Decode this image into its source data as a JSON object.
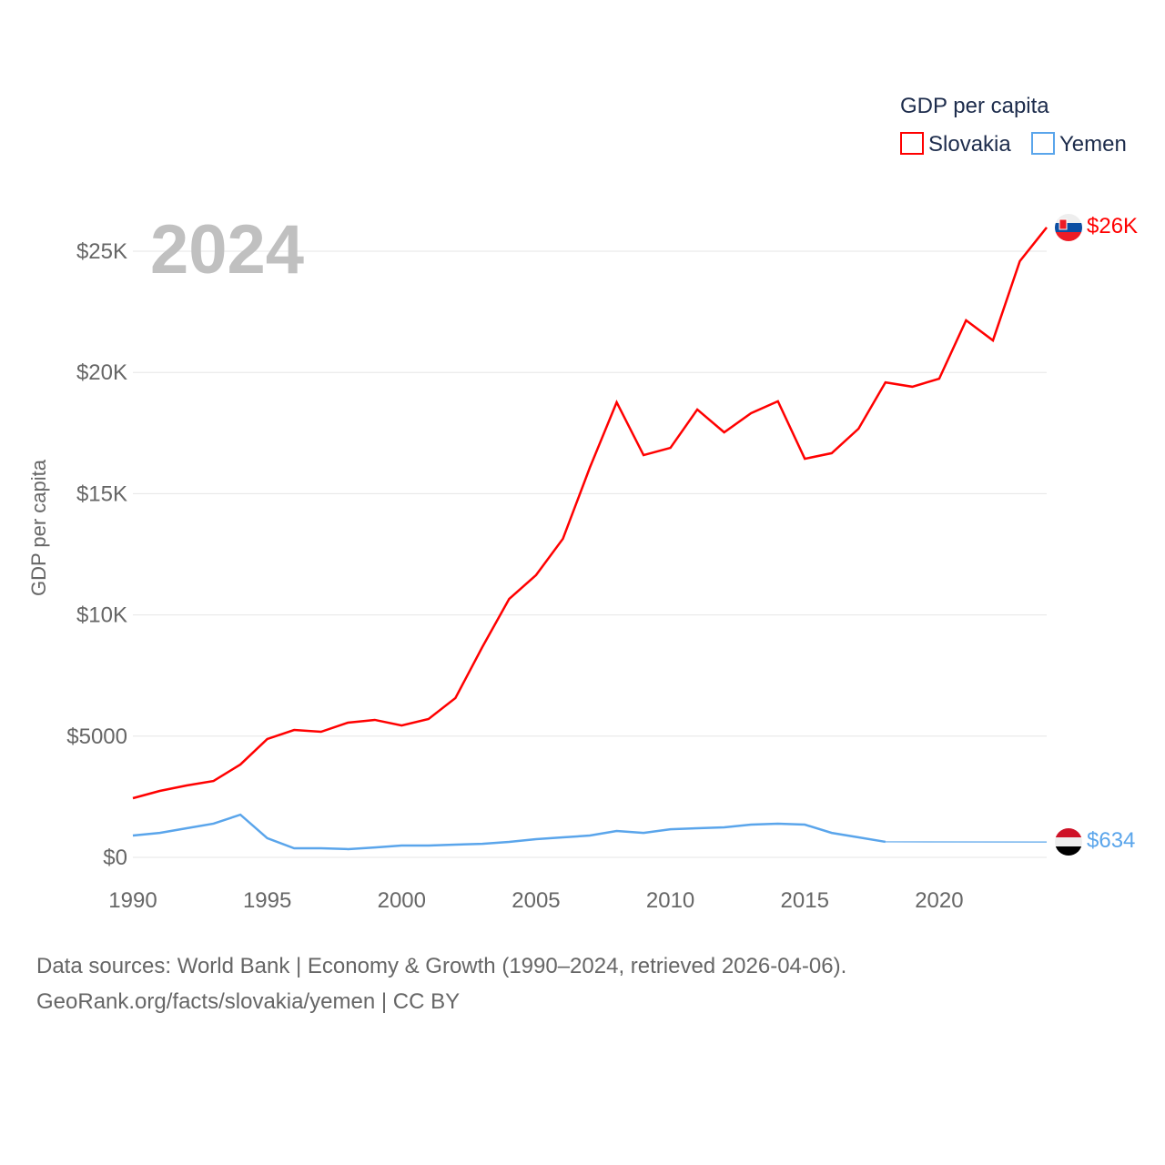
{
  "chart_data": {
    "type": "line",
    "year_watermark": "2024",
    "ylabel": "GDP per capita",
    "legend": {
      "title": "GDP per capita",
      "position": "top-right",
      "entries": [
        "Slovakia",
        "Yemen"
      ]
    },
    "xlim": [
      1990,
      2024
    ],
    "ylim": [
      0,
      27000
    ],
    "x_ticks": [
      "1990",
      "1995",
      "2000",
      "2005",
      "2010",
      "2015",
      "2020"
    ],
    "x_tick_values": [
      1990,
      1995,
      2000,
      2005,
      2010,
      2015,
      2020
    ],
    "y_ticks": [
      "$0",
      "$5000",
      "$10K",
      "$15K",
      "$20K",
      "$25K"
    ],
    "y_tick_values": [
      0,
      5000,
      10000,
      15000,
      20000,
      25000
    ],
    "x": [
      1990,
      1991,
      1992,
      1993,
      1994,
      1995,
      1996,
      1997,
      1998,
      1999,
      2000,
      2001,
      2002,
      2003,
      2004,
      2005,
      2006,
      2007,
      2008,
      2009,
      2010,
      2011,
      2012,
      2013,
      2014,
      2015,
      2016,
      2017,
      2018,
      2019,
      2020,
      2021,
      2022,
      2023,
      2024
    ],
    "series": [
      {
        "name": "Slovakia",
        "color": "#ff0000",
        "end_label": "$26K",
        "values": [
          2440,
          2740,
          2965,
          3150,
          3830,
          4880,
          5255,
          5180,
          5555,
          5670,
          5440,
          5705,
          6570,
          8670,
          10660,
          11640,
          13140,
          16070,
          18770,
          16590,
          16890,
          18470,
          17530,
          18320,
          18810,
          16440,
          16670,
          17680,
          19590,
          19410,
          19740,
          22150,
          21320,
          24590,
          25980
        ]
      },
      {
        "name": "Yemen",
        "color": "#5aa5eb",
        "end_label": "$634",
        "values": [
          900,
          1010,
          1200,
          1390,
          1760,
          790,
          375,
          375,
          340,
          410,
          490,
          490,
          525,
          560,
          640,
          750,
          825,
          900,
          1090,
          1010,
          1160,
          1200,
          1240,
          1350,
          1390,
          1350,
          1010,
          825,
          640,
          null,
          null,
          null,
          null,
          null,
          634
        ]
      }
    ]
  },
  "footer": {
    "line1": "Data sources: World Bank | Economy & Growth (1990–2024, retrieved 2026-04-06).",
    "line2": "GeoRank.org/facts/slovakia/yemen | CC BY"
  }
}
